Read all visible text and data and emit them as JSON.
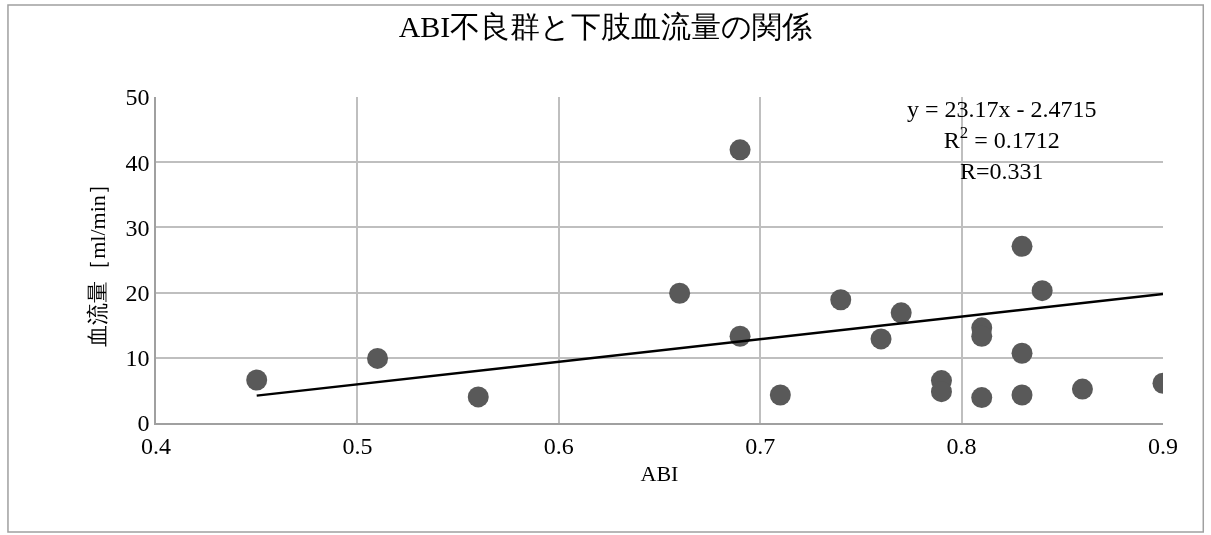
{
  "chart_data": {
    "type": "scatter",
    "title": "ABI不良群と下肢血流量の関係",
    "xlabel": "ABI",
    "ylabel": "血流量［ml/min］",
    "x": [
      0.45,
      0.51,
      0.56,
      0.66,
      0.69,
      0.69,
      0.71,
      0.74,
      0.76,
      0.77,
      0.79,
      0.79,
      0.81,
      0.81,
      0.81,
      0.83,
      0.83,
      0.83,
      0.84,
      0.86,
      0.9
    ],
    "series": [
      {
        "color": "#595959",
        "values": [
          6.6,
          9.9,
          4.0,
          19.9,
          41.9,
          13.3,
          4.3,
          18.9,
          12.9,
          16.9,
          6.5,
          4.8,
          14.6,
          13.3,
          3.9,
          27.1,
          10.7,
          4.3,
          20.3,
          5.2,
          6.1
        ]
      },
      {
        "type": "line",
        "color": "#000000",
        "x": [
          0.45,
          0.9
        ],
        "values": [
          4.2,
          19.8
        ],
        "marker": "none"
      }
    ],
    "xlim": [
      0.4,
      0.9
    ],
    "xticks": [
      0.4,
      0.5,
      0.6,
      0.7,
      0.8,
      0.9
    ],
    "ylim": [
      0,
      50
    ],
    "yticks": [
      0,
      10,
      20,
      30,
      40,
      50
    ],
    "grid": true,
    "marker": "circle",
    "annotations": [
      "y = 23.17x - 2.4715\nR$^{2}$ = 0.1712\nR=0.331"
    ]
  }
}
